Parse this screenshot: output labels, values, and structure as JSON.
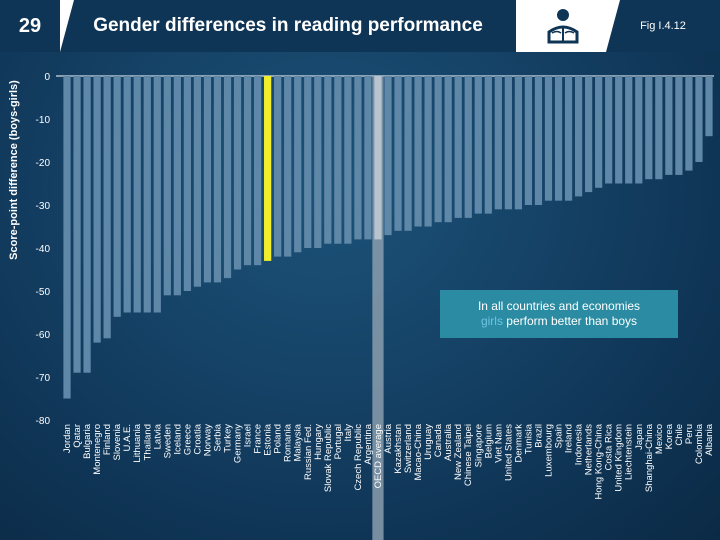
{
  "header": {
    "page_number": "29",
    "title": "Gender differences in reading performance",
    "figure_ref": "Fig I.4.12",
    "icon": "reader-icon"
  },
  "annotation": {
    "line1": "In all countries and economies",
    "highlight": "girls",
    "rest": " perform better than boys"
  },
  "colors": {
    "bar": "#5f87a8",
    "highlight_bar": "#f2ee2a",
    "oecd_band": "#8a9eae",
    "background": "#0f3556",
    "annotation_bg": "#2a8ba2"
  },
  "chart_data": {
    "type": "bar",
    "ylabel": "Score-point difference (boys-girls)",
    "ylim": [
      -80,
      0
    ],
    "yticks": [
      0,
      -10,
      -20,
      -30,
      -40,
      -50,
      -60,
      -70,
      -80
    ],
    "highlighted": "Estonia",
    "oecd_highlight": "OECD average",
    "categories": [
      "Jordan",
      "Qatar",
      "Bulgaria",
      "Montenegro",
      "Finland",
      "Slovenia",
      "U.A.E.",
      "Lithuania",
      "Thailand",
      "Latvia",
      "Sweden",
      "Iceland",
      "Greece",
      "Croatia",
      "Norway",
      "Serbia",
      "Turkey",
      "Germany",
      "Israel",
      "France",
      "Estonia",
      "Poland",
      "Romania",
      "Malaysia",
      "Russian Fed.",
      "Hungary",
      "Slovak Republic",
      "Portugal",
      "Italy",
      "Czech Republic",
      "Argentina",
      "OECD average",
      "Austria",
      "Kazakhstan",
      "Switzerland",
      "Macao-China",
      "Uruguay",
      "Canada",
      "Australia",
      "New Zealand",
      "Chinese Taipei",
      "Singapore",
      "Belgium",
      "Viet Nam",
      "United States",
      "Denmark",
      "Tunisia",
      "Brazil",
      "Luxembourg",
      "Spain",
      "Ireland",
      "Indonesia",
      "Netherlands",
      "Hong Kong-China",
      "Costa Rica",
      "United Kingdom",
      "Liechtenstein",
      "Japan",
      "Shanghai-China",
      "Mexico",
      "Korea",
      "Chile",
      "Peru",
      "Colombia",
      "Albania"
    ],
    "values": [
      -75,
      -69,
      -69,
      -62,
      -61,
      -56,
      -55,
      -55,
      -55,
      -55,
      -51,
      -51,
      -50,
      -49,
      -48,
      -48,
      -47,
      -45,
      -44,
      -44,
      -43,
      -42,
      -42,
      -41,
      -40,
      -40,
      -39,
      -39,
      -39,
      -38,
      -38,
      -38,
      -37,
      -36,
      -36,
      -35,
      -35,
      -34,
      -34,
      -33,
      -33,
      -32,
      -32,
      -31,
      -31,
      -31,
      -30,
      -30,
      -29,
      -29,
      -29,
      -28,
      -27,
      -26,
      -25,
      -25,
      -25,
      -25,
      -24,
      -24,
      -23,
      -23,
      -22,
      -20,
      -14
    ]
  }
}
